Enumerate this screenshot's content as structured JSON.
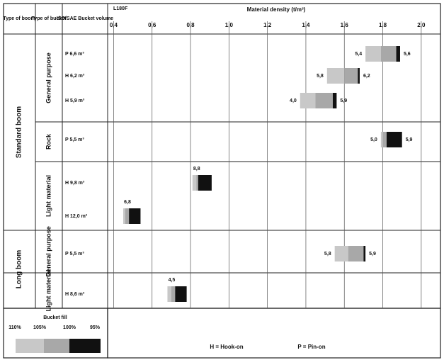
{
  "chart_data": {
    "type": "range-bar",
    "model": "L180F",
    "title": "Material density (t/m³)",
    "headers": [
      "Type of boom",
      "Type of bucket",
      "ISO/SAE Bucket volume"
    ],
    "xlim": [
      0.38,
      2.1
    ],
    "xticks": [
      {
        "value": 0.4,
        "label": "0,4"
      },
      {
        "value": 0.6,
        "label": "0,6"
      },
      {
        "value": 0.8,
        "label": "0,8"
      },
      {
        "value": 1.0,
        "label": "1,0"
      },
      {
        "value": 1.2,
        "label": "1,2"
      },
      {
        "value": 1.4,
        "label": "1,4"
      },
      {
        "value": 1.6,
        "label": "1,6"
      },
      {
        "value": 1.8,
        "label": "1,8"
      },
      {
        "value": 2.0,
        "label": "2,0"
      }
    ],
    "booms": [
      {
        "name": "Standard boom",
        "rows": 6
      },
      {
        "name": "Long boom",
        "rows": 2
      }
    ],
    "buckets": [
      {
        "name": "General purpose",
        "rows": 3
      },
      {
        "name": "Rock",
        "rows": 1
      },
      {
        "name": "Light material",
        "rows": 2
      },
      {
        "name": "General purpose",
        "rows": 1
      },
      {
        "name": "Light material",
        "rows": 1
      }
    ],
    "rows": [
      {
        "volume": "P 6,6 m³",
        "densities": [
          1.71,
          1.79,
          1.87,
          1.89
        ],
        "left_label": "5,4",
        "right_label": "5,6"
      },
      {
        "volume": "H 6,2 m³",
        "densities": [
          1.51,
          1.6,
          1.67,
          1.68
        ],
        "left_label": "5,8",
        "right_label": "6,2"
      },
      {
        "volume": "H 5,9 m³",
        "densities": [
          1.37,
          1.45,
          1.54,
          1.56
        ],
        "left_label": "4,0",
        "right_label": "5,9"
      },
      {
        "volume": "P 5,5 m³",
        "densities": [
          1.79,
          1.8,
          1.82,
          1.9
        ],
        "left_label": "5,0",
        "right_label": "5,9"
      },
      {
        "volume": "H 9,8 m³",
        "densities": [
          0.81,
          0.83,
          0.84,
          0.91
        ],
        "top_label": "8,8"
      },
      {
        "volume": "H 12,0 m³",
        "densities": [
          0.45,
          0.46,
          0.48,
          0.54
        ],
        "top_label": "6,8"
      },
      {
        "volume": "P 5,5 m³",
        "densities": [
          1.55,
          1.62,
          1.7,
          1.71
        ],
        "left_label": "5,8",
        "right_label": "5,9"
      },
      {
        "volume": "H 8,6 m³",
        "densities": [
          0.68,
          0.7,
          0.72,
          0.78
        ],
        "top_label": "4,5"
      }
    ],
    "legend": {
      "title": "Bucket fill",
      "labels": [
        "110%",
        "105%",
        "100%",
        "95%"
      ],
      "colors": [
        "#c8c8c8",
        "#a8a8a8",
        "#111111"
      ]
    },
    "notes": [
      "H = Hook-on",
      "P = Pin-on"
    ]
  }
}
